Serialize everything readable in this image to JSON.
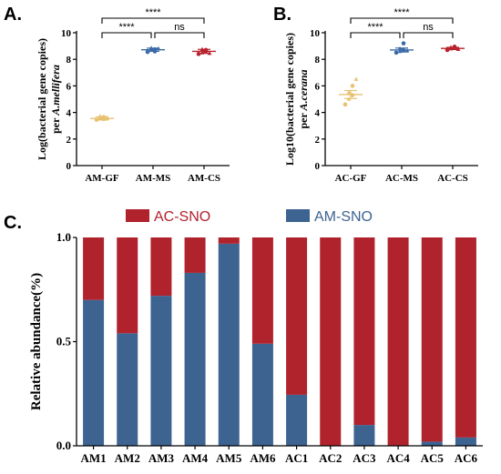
{
  "chart_data": [
    {
      "panel": "A.",
      "type": "scatter",
      "categories": [
        "AM-GF",
        "AM-MS",
        "AM-CS"
      ],
      "ylabel_main": "Log(bacterial gene copies)",
      "ylabel_per": "per ",
      "ylabel_species": "A.mellifera",
      "ylim": [
        0,
        10
      ],
      "yticks": [
        0,
        2,
        4,
        6,
        8,
        10
      ],
      "colors": [
        "#e8c170",
        "#3b6aa8",
        "#b8232d"
      ],
      "means": [
        3.55,
        8.72,
        8.6
      ],
      "sem": [
        0.12,
        0.12,
        0.15
      ],
      "points": [
        [
          3.45,
          3.55,
          3.65,
          3.72,
          3.5,
          3.58
        ],
        [
          8.55,
          8.7,
          8.75,
          8.85,
          8.6,
          8.8
        ],
        [
          8.4,
          8.5,
          8.7,
          8.75,
          8.6,
          8.45
        ]
      ],
      "significance": [
        {
          "pair": [
            0,
            1
          ],
          "label": "****"
        },
        {
          "pair": [
            1,
            2
          ],
          "label": "ns"
        },
        {
          "pair": [
            0,
            2
          ],
          "label": "****"
        }
      ]
    },
    {
      "panel": "B.",
      "type": "scatter",
      "categories": [
        "AC-GF",
        "AC-MS",
        "AC-CS"
      ],
      "ylabel_main": "Log10(bacterial gene copies)",
      "ylabel_per": "per ",
      "ylabel_species": "A.cerana",
      "ylim": [
        0,
        10
      ],
      "yticks": [
        0,
        2,
        4,
        6,
        8,
        10
      ],
      "colors": [
        "#e8c170",
        "#3b6aa8",
        "#b8232d"
      ],
      "means": [
        5.35,
        8.7,
        8.82
      ],
      "sem": [
        0.3,
        0.15,
        0.08
      ],
      "points": [
        [
          4.6,
          5.0,
          5.3,
          5.5,
          6.0,
          6.5
        ],
        [
          8.5,
          8.6,
          8.7,
          8.8,
          9.2,
          8.65
        ],
        [
          8.7,
          8.8,
          8.85,
          8.9,
          8.95,
          8.75
        ]
      ],
      "significance": [
        {
          "pair": [
            0,
            1
          ],
          "label": "****"
        },
        {
          "pair": [
            1,
            2
          ],
          "label": "ns"
        },
        {
          "pair": [
            0,
            2
          ],
          "label": "****"
        }
      ]
    },
    {
      "panel": "C.",
      "type": "bar",
      "stacked": true,
      "categories": [
        "AM1",
        "AM2",
        "AM3",
        "AM4",
        "AM5",
        "AM6",
        "AC1",
        "AC2",
        "AC3",
        "AC4",
        "AC5",
        "AC6"
      ],
      "ylabel": "Relative abundance(%)",
      "ylim": [
        0,
        1
      ],
      "yticks": [
        "0.0",
        "0.5",
        "1.0"
      ],
      "series": [
        {
          "name": "AM-SNO",
          "color": "#3d6391",
          "values": [
            0.7,
            0.54,
            0.72,
            0.83,
            0.97,
            0.49,
            0.245,
            0.0,
            0.1,
            0.0,
            0.02,
            0.04
          ]
        },
        {
          "name": "AC-SNO",
          "color": "#b0222c",
          "values": [
            0.3,
            0.46,
            0.28,
            0.17,
            0.03,
            0.51,
            0.755,
            1.0,
            0.9,
            1.0,
            0.98,
            0.96
          ]
        }
      ],
      "legend": [
        {
          "name": "AC-SNO",
          "color": "#b0222c"
        },
        {
          "name": "AM-SNO",
          "color": "#3d6391"
        }
      ]
    }
  ]
}
